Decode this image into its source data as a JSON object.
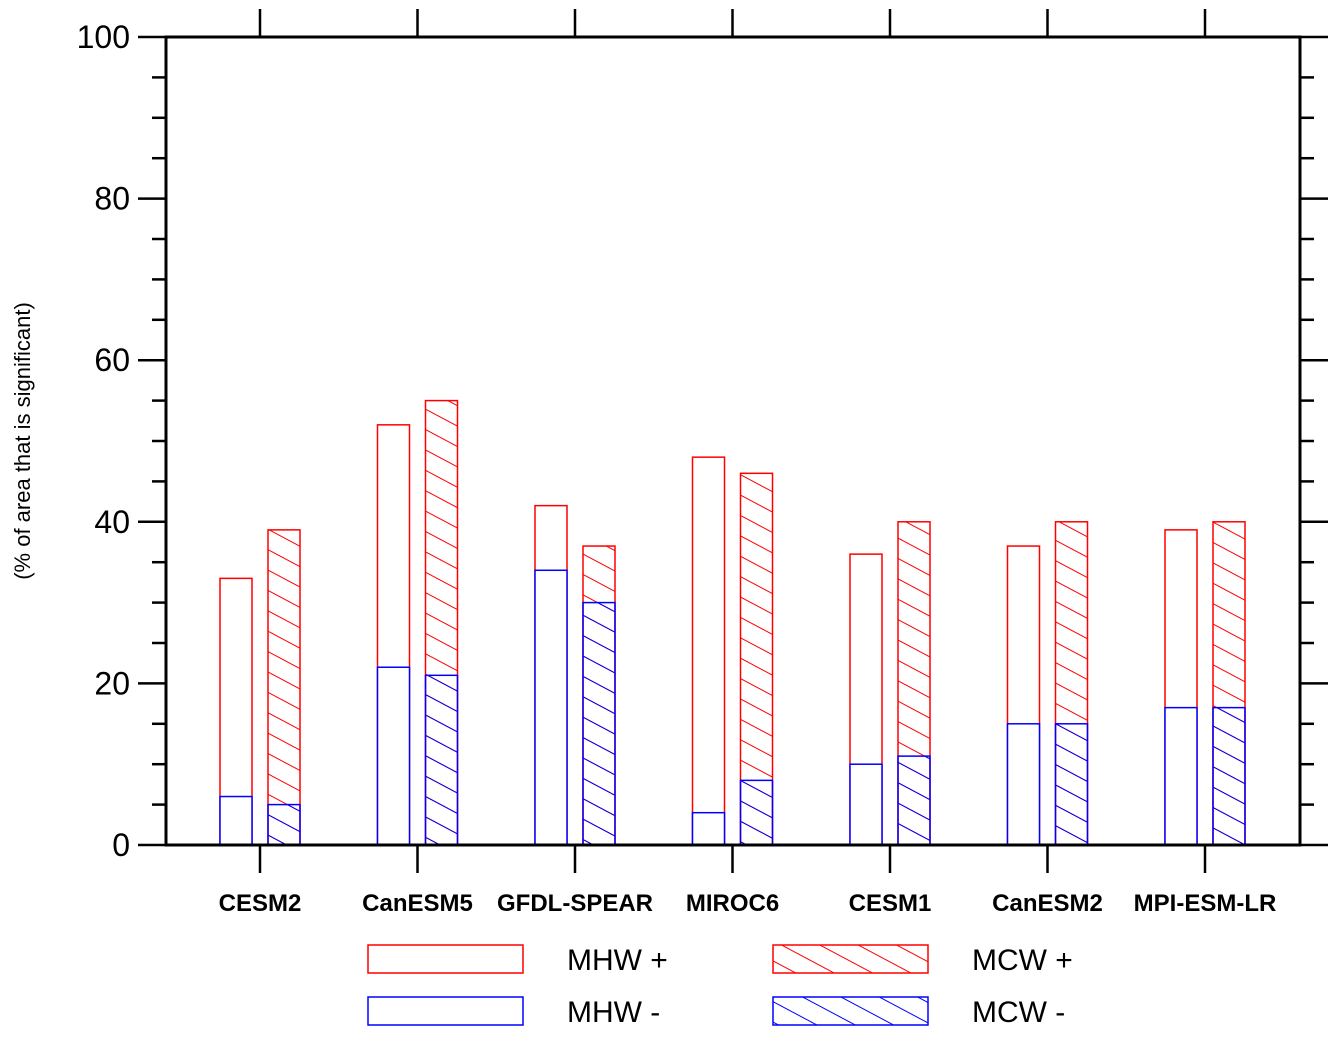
{
  "chart_data": {
    "type": "bar",
    "title": "",
    "xlabel": "",
    "ylabel": "(% of area that is significant)",
    "ylim": [
      0,
      100
    ],
    "yticks": [
      0,
      20,
      40,
      60,
      80,
      100
    ],
    "categories": [
      "CESM2",
      "CanESM5",
      "GFDL-SPEAR",
      "MIROC6",
      "CESM1",
      "CanESM2",
      "MPI-ESM-LR"
    ],
    "series": [
      {
        "name": "MHW +",
        "values": [
          33,
          52,
          42,
          48,
          36,
          37,
          39
        ],
        "color": "#ff0000",
        "hatched": false,
        "group": "MHW"
      },
      {
        "name": "MCW +",
        "values": [
          39,
          55,
          37,
          46,
          40,
          40,
          40
        ],
        "color": "#ff0000",
        "hatched": true,
        "group": "MCW"
      },
      {
        "name": "MHW -",
        "values": [
          6,
          22,
          34,
          4,
          10,
          15,
          17
        ],
        "color": "#0000ff",
        "hatched": false,
        "group": "MHW"
      },
      {
        "name": "MCW -",
        "values": [
          5,
          21,
          30,
          8,
          11,
          15,
          17
        ],
        "color": "#0000ff",
        "hatched": true,
        "group": "MCW"
      }
    ],
    "grid": false,
    "legend_position": "bottom"
  }
}
